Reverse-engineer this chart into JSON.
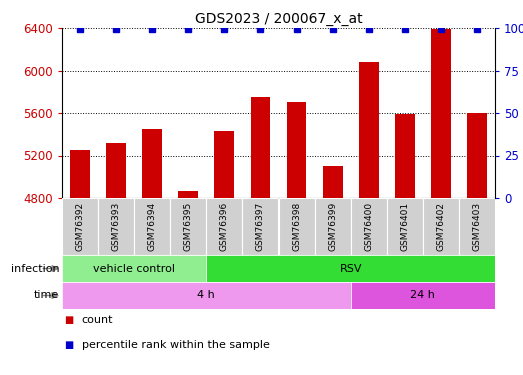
{
  "title": "GDS2023 / 200067_x_at",
  "categories": [
    "GSM76392",
    "GSM76393",
    "GSM76394",
    "GSM76395",
    "GSM76396",
    "GSM76397",
    "GSM76398",
    "GSM76399",
    "GSM76400",
    "GSM76401",
    "GSM76402",
    "GSM76403"
  ],
  "counts": [
    5250,
    5320,
    5450,
    4870,
    5430,
    5750,
    5700,
    5100,
    6080,
    5590,
    6390,
    5600
  ],
  "percentile_ranks": [
    99,
    99,
    99,
    99,
    99,
    99,
    99,
    99,
    99,
    99,
    99,
    99
  ],
  "bar_color": "#cc0000",
  "dot_color": "#0000cc",
  "ylim_left": [
    4800,
    6400
  ],
  "ylim_right": [
    0,
    100
  ],
  "yticks_left": [
    4800,
    5200,
    5600,
    6000,
    6400
  ],
  "yticks_right": [
    0,
    25,
    50,
    75,
    100
  ],
  "infection_groups": [
    {
      "label": "vehicle control",
      "start": 0,
      "end": 4,
      "color": "#90ee90"
    },
    {
      "label": "RSV",
      "start": 4,
      "end": 12,
      "color": "#33dd33"
    }
  ],
  "time_groups": [
    {
      "label": "4 h",
      "start": 0,
      "end": 8,
      "color": "#ee99ee"
    },
    {
      "label": "24 h",
      "start": 8,
      "end": 12,
      "color": "#dd55dd"
    }
  ],
  "legend_items": [
    {
      "label": "count",
      "color": "#cc0000"
    },
    {
      "label": "percentile rank within the sample",
      "color": "#0000cc"
    }
  ],
  "left_axis_color": "#cc0000",
  "right_axis_color": "#0000cc",
  "gsm_box_color": "#d0d0d0",
  "arrow_color": "#888888"
}
